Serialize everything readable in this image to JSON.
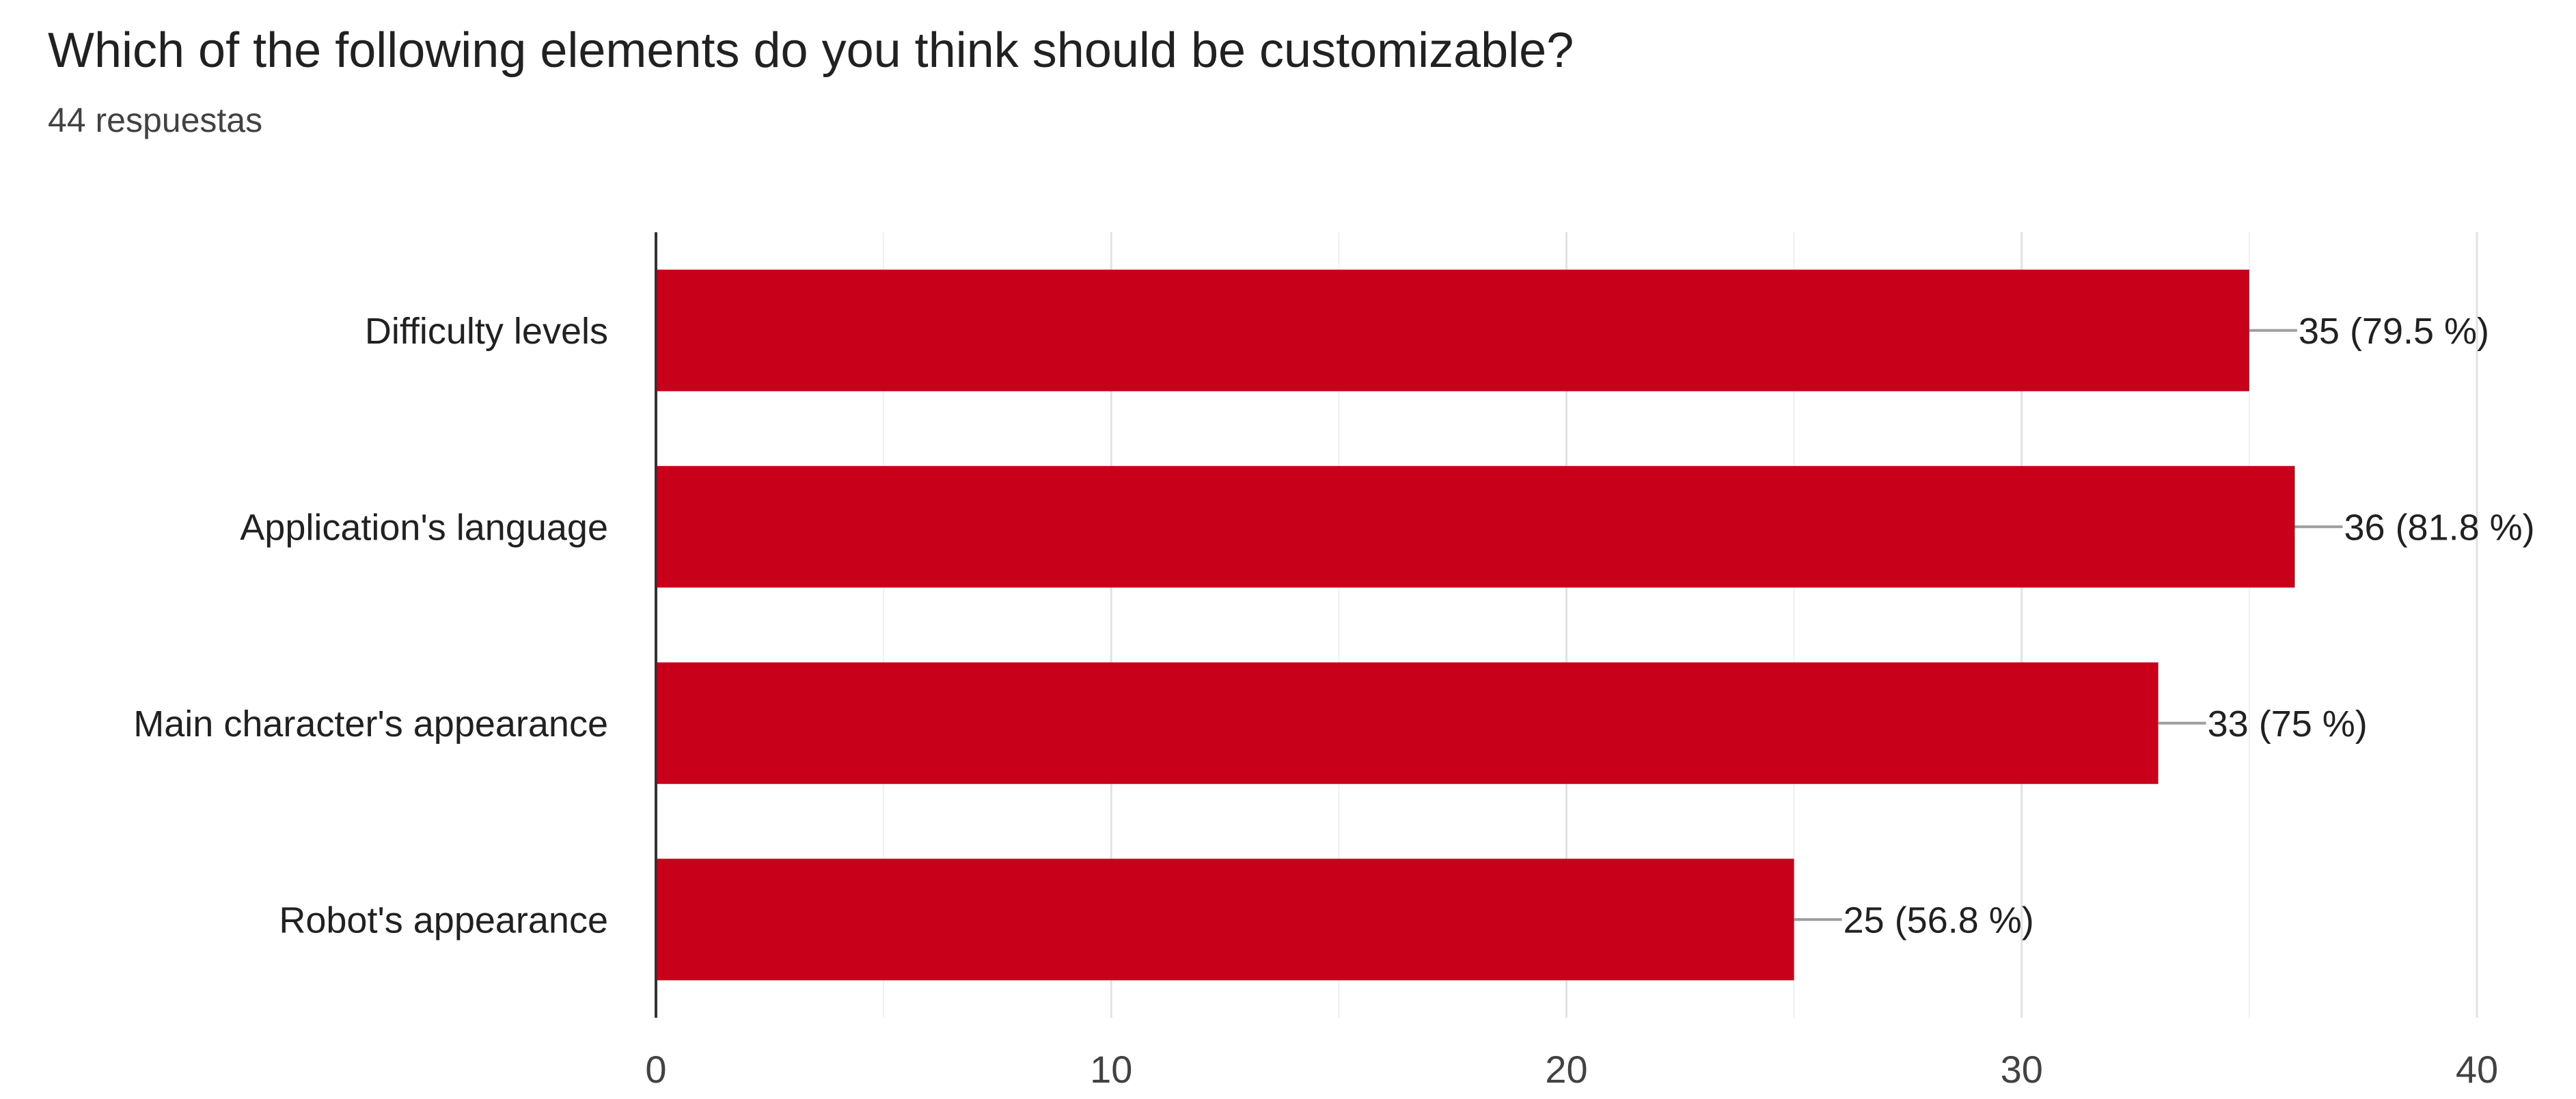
{
  "header": {
    "title": "Which of the following elements do you think should be customizable?",
    "subtitle": "44 respuestas"
  },
  "colors": {
    "bar": "#c8001a",
    "grid": "#e6e6e6",
    "axis": "#333333",
    "leader": "#9e9e9e"
  },
  "chart_data": {
    "type": "bar",
    "orientation": "horizontal",
    "title": "Which of the following elements do you think should be customizable?",
    "subtitle": "44 respuestas",
    "categories": [
      "Difficulty levels",
      "Application's language",
      "Main character's appearance",
      "Robot's appearance"
    ],
    "values": [
      35,
      36,
      33,
      25
    ],
    "data_labels": [
      "35 (79.5 %)",
      "36 (81.8 %)",
      "33 (75 %)",
      "25 (56.8 %)"
    ],
    "xlim": [
      0,
      40
    ],
    "x_ticks": [
      0,
      10,
      20,
      30,
      40
    ],
    "xlabel": "",
    "ylabel": "",
    "grid": true,
    "legend": "none"
  }
}
